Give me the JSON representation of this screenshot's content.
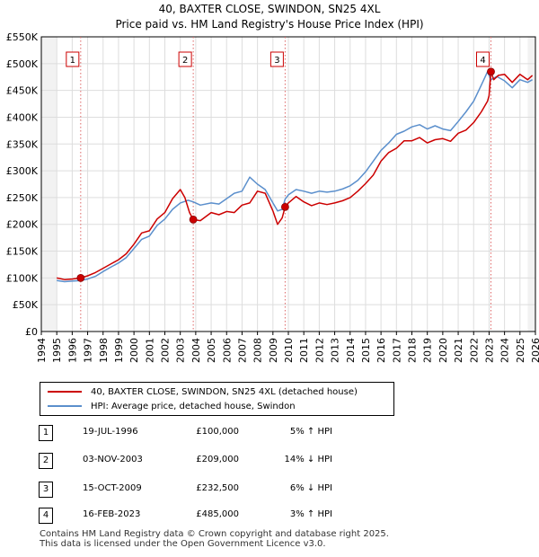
{
  "chart_data": {
    "type": "line",
    "title": "40, BAXTER CLOSE, SWINDON, SN25 4XL",
    "subtitle": "Price paid vs. HM Land Registry's House Price Index (HPI)",
    "x_ticks": [
      "1994",
      "1995",
      "1996",
      "1997",
      "1998",
      "1999",
      "2000",
      "2001",
      "2002",
      "2003",
      "2004",
      "2005",
      "2006",
      "2007",
      "2008",
      "2009",
      "2010",
      "2011",
      "2012",
      "2013",
      "2014",
      "2015",
      "2016",
      "2017",
      "2018",
      "2019",
      "2020",
      "2021",
      "2022",
      "2023",
      "2024",
      "2025",
      "2026"
    ],
    "y_ticks": [
      "£0",
      "£50K",
      "£100K",
      "£150K",
      "£200K",
      "£250K",
      "£300K",
      "£350K",
      "£400K",
      "£450K",
      "£500K",
      "£550K"
    ],
    "xlim": [
      1994,
      2026
    ],
    "ylim": [
      0,
      550000
    ],
    "grid": true,
    "series": [
      {
        "name": "40, BAXTER CLOSE, SWINDON, SN25 4XL (detached house)",
        "color": "#cc0000",
        "x": [
          1995.0,
          1995.5,
          1996.0,
          1996.55,
          1997.0,
          1997.5,
          1998.0,
          1998.5,
          1999.0,
          1999.5,
          2000.0,
          2000.5,
          2001.0,
          2001.5,
          2002.0,
          2002.5,
          2003.0,
          2003.3,
          2003.6,
          2003.84,
          2004.3,
          2005.0,
          2005.5,
          2006.0,
          2006.5,
          2007.0,
          2007.5,
          2008.0,
          2008.5,
          2009.0,
          2009.3,
          2009.6,
          2009.79,
          2010.0,
          2010.5,
          2011.0,
          2011.5,
          2012.0,
          2012.5,
          2013.0,
          2013.5,
          2014.0,
          2014.5,
          2015.0,
          2015.5,
          2016.0,
          2016.5,
          2017.0,
          2017.5,
          2018.0,
          2018.5,
          2019.0,
          2019.5,
          2020.0,
          2020.5,
          2021.0,
          2021.5,
          2022.0,
          2022.5,
          2022.9,
          2023.0,
          2023.12,
          2023.3,
          2023.6,
          2024.0,
          2024.5,
          2025.0,
          2025.5,
          2025.8
        ],
        "y": [
          100000,
          97000,
          98000,
          100000,
          104000,
          110000,
          118000,
          126000,
          134000,
          145000,
          163000,
          184000,
          188000,
          210000,
          222000,
          248000,
          265000,
          250000,
          222000,
          209000,
          207000,
          222000,
          218000,
          224000,
          222000,
          236000,
          240000,
          262000,
          258000,
          225000,
          200000,
          212000,
          232500,
          240000,
          252000,
          242000,
          235000,
          240000,
          237000,
          240000,
          244000,
          250000,
          262000,
          276000,
          292000,
          318000,
          334000,
          342000,
          356000,
          356000,
          362000,
          352000,
          358000,
          360000,
          355000,
          370000,
          376000,
          390000,
          410000,
          430000,
          440000,
          485000,
          470000,
          478000,
          480000,
          465000,
          480000,
          470000,
          478000
        ]
      },
      {
        "name": "HPI: Average price, detached house, Swindon",
        "color": "#5b8fcc",
        "x": [
          1995.0,
          1995.5,
          1996.0,
          1996.55,
          1997.0,
          1997.5,
          1998.0,
          1998.5,
          1999.0,
          1999.5,
          2000.0,
          2000.5,
          2001.0,
          2001.5,
          2002.0,
          2002.5,
          2003.0,
          2003.5,
          2003.84,
          2004.3,
          2005.0,
          2005.5,
          2006.0,
          2006.5,
          2007.0,
          2007.5,
          2008.0,
          2008.5,
          2009.0,
          2009.3,
          2009.6,
          2009.79,
          2010.0,
          2010.5,
          2011.0,
          2011.5,
          2012.0,
          2012.5,
          2013.0,
          2013.5,
          2014.0,
          2014.5,
          2015.0,
          2015.5,
          2016.0,
          2016.5,
          2017.0,
          2017.5,
          2018.0,
          2018.5,
          2019.0,
          2019.5,
          2020.0,
          2020.5,
          2021.0,
          2021.5,
          2022.0,
          2022.5,
          2022.9,
          2023.12,
          2023.5,
          2024.0,
          2024.5,
          2025.0,
          2025.5,
          2025.8
        ],
        "y": [
          95000,
          93000,
          94000,
          95000,
          98000,
          103000,
          112000,
          120000,
          128000,
          138000,
          155000,
          172000,
          178000,
          198000,
          210000,
          228000,
          240000,
          245000,
          242000,
          236000,
          240000,
          238000,
          248000,
          258000,
          262000,
          288000,
          275000,
          265000,
          240000,
          225000,
          228000,
          247000,
          255000,
          265000,
          262000,
          258000,
          262000,
          260000,
          262000,
          266000,
          272000,
          282000,
          298000,
          318000,
          338000,
          352000,
          368000,
          374000,
          382000,
          386000,
          378000,
          384000,
          378000,
          375000,
          392000,
          410000,
          430000,
          460000,
          485000,
          470000,
          476000,
          468000,
          455000,
          470000,
          465000,
          470000
        ]
      }
    ],
    "markers": [
      {
        "label": "1",
        "x": 1996.55,
        "y": 100000
      },
      {
        "label": "2",
        "x": 2003.84,
        "y": 209000
      },
      {
        "label": "3",
        "x": 2009.79,
        "y": 232500
      },
      {
        "label": "4",
        "x": 2023.12,
        "y": 485000
      }
    ]
  },
  "legend": {
    "red_label": "40, BAXTER CLOSE, SWINDON, SN25 4XL (detached house)",
    "blue_label": "HPI: Average price, detached house, Swindon",
    "red_color": "#cc0000",
    "blue_color": "#5b8fcc"
  },
  "transactions": [
    {
      "num": "1",
      "date": "19-JUL-1996",
      "price": "£100,000",
      "hpi": "5% ↑ HPI"
    },
    {
      "num": "2",
      "date": "03-NOV-2003",
      "price": "£209,000",
      "hpi": "14% ↓ HPI"
    },
    {
      "num": "3",
      "date": "15-OCT-2009",
      "price": "£232,500",
      "hpi": "6% ↓ HPI"
    },
    {
      "num": "4",
      "date": "16-FEB-2023",
      "price": "£485,000",
      "hpi": "3% ↑ HPI"
    }
  ],
  "footer": {
    "line1": "Contains HM Land Registry data © Crown copyright and database right 2025.",
    "line2": "This data is licensed under the Open Government Licence v3.0."
  }
}
